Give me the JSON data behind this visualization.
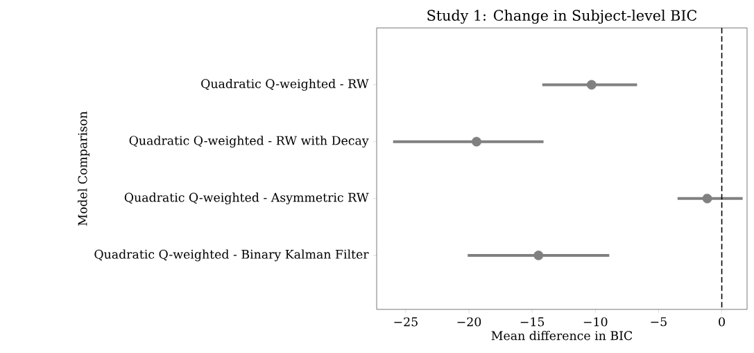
{
  "chart_data": {
    "type": "scatter",
    "orientation": "horizontal",
    "title": "Study 1: Change in Subject-level BIC",
    "xlabel": "Mean difference in BIC",
    "ylabel": "Model Comparison",
    "categories": [
      "Quadratic Q-weighted - RW",
      "Quadratic Q-weighted - RW with Decay",
      "Quadratic Q-weighted - Asymmetric RW",
      "Quadratic Q-weighted - Binary Kalman Filter"
    ],
    "series": [
      {
        "color": "#808080",
        "values": [
          -10.3,
          -19.4,
          -1.15,
          -14.5
        ],
        "errors": [
          [
            -14.2,
            -6.7
          ],
          [
            -26.0,
            -14.1
          ],
          [
            -3.5,
            1.65
          ],
          [
            -20.1,
            -8.9
          ]
        ]
      }
    ],
    "marker": "circle",
    "xlim": [
      -27.3,
      2.0
    ],
    "xticks": [
      {
        "value": -25,
        "label": "−25"
      },
      {
        "value": -20,
        "label": "−20"
      },
      {
        "value": -15,
        "label": "−15"
      },
      {
        "value": -10,
        "label": "−10"
      },
      {
        "value": -5,
        "label": "−5"
      },
      {
        "value": 0,
        "label": "0"
      }
    ],
    "ref_lines": [
      {
        "axis": "x",
        "value": 0,
        "color": "#000000",
        "line_style": "dashed"
      }
    ],
    "grid": false
  }
}
